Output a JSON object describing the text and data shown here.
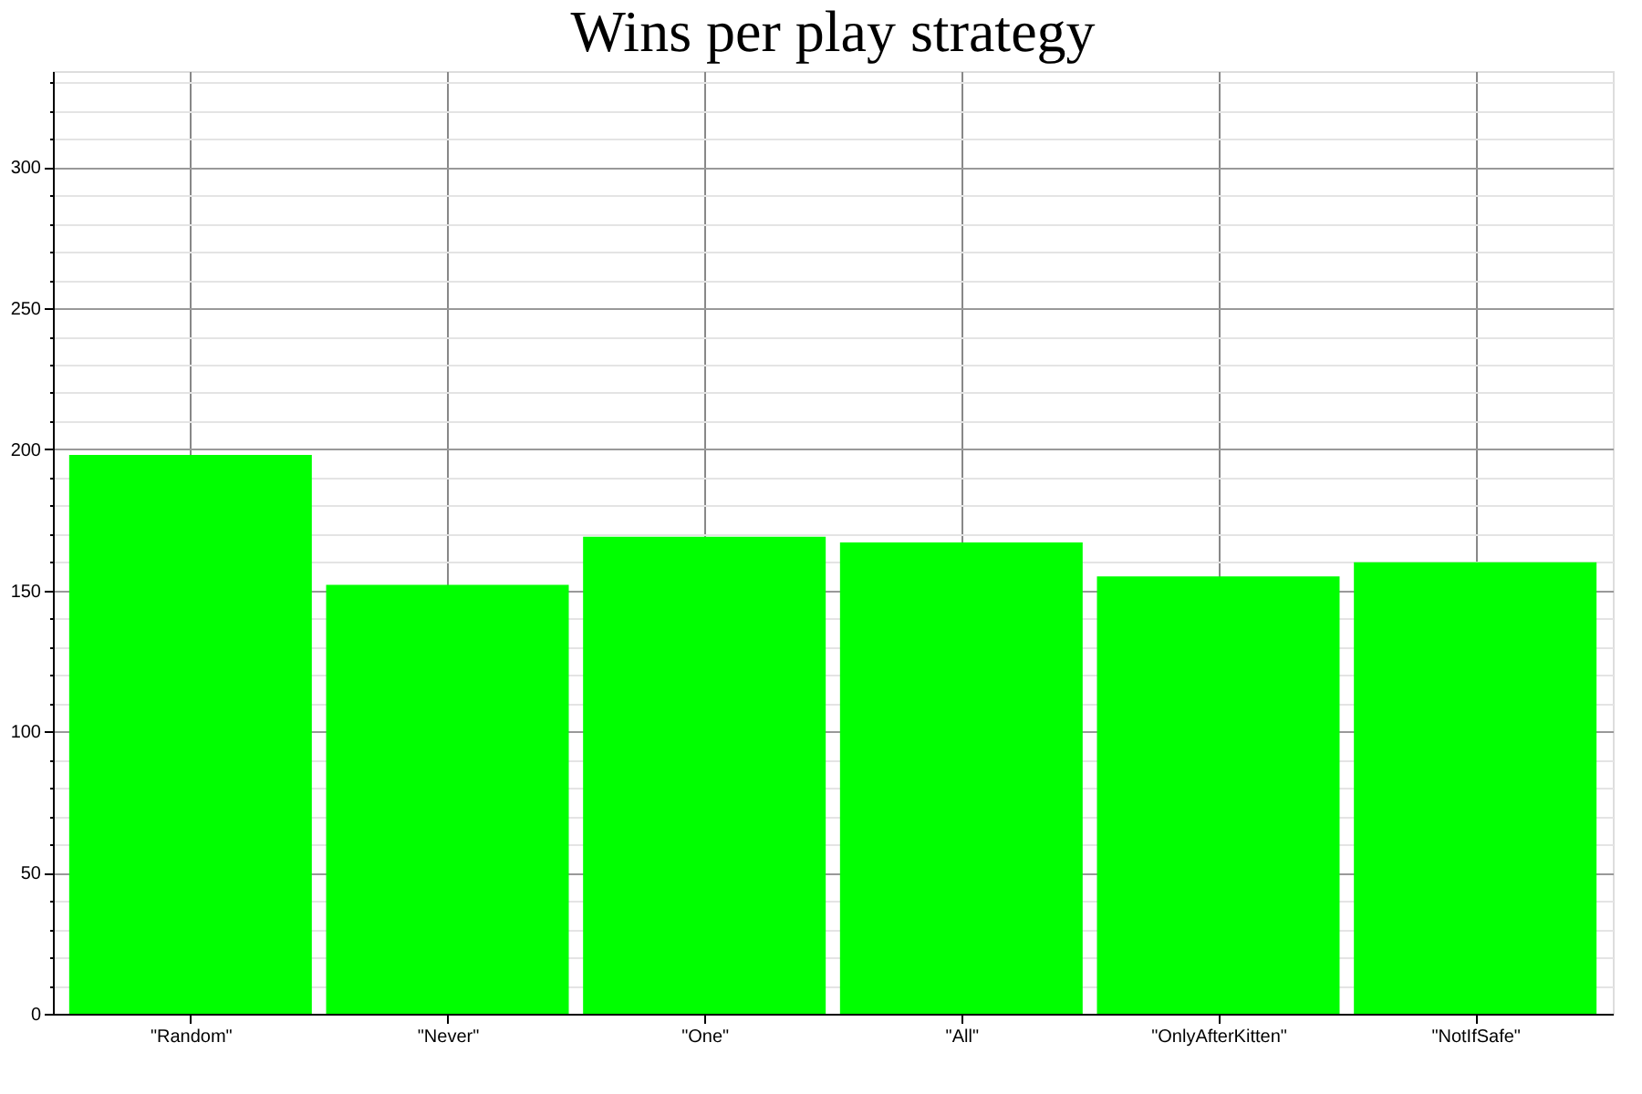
{
  "chart_data": {
    "type": "bar",
    "title": "Wins per play strategy",
    "categories": [
      "\"Random\"",
      "\"Never\"",
      "\"One\"",
      "\"All\"",
      "\"OnlyAfterKitten\"",
      "\"NotIfSafe\""
    ],
    "values": [
      198,
      152,
      169,
      167,
      155,
      160
    ],
    "color": "#00ff00",
    "ylim": [
      0,
      334
    ],
    "yticks": [
      0,
      {
        "value": 10,
        "label": null
      },
      {
        "value": 20,
        "label": null
      },
      {
        "value": 30,
        "label": null
      },
      {
        "value": 40,
        "label": null
      },
      50,
      {
        "value": 60,
        "label": null
      },
      {
        "value": 70,
        "label": null
      },
      {
        "value": 80,
        "label": null
      },
      {
        "value": 90,
        "label": null
      },
      100,
      {
        "value": 110,
        "label": null
      },
      {
        "value": 120,
        "label": null
      },
      {
        "value": 130,
        "label": null
      },
      {
        "value": 140,
        "label": null
      },
      150,
      {
        "value": 160,
        "label": null
      },
      {
        "value": 170,
        "label": null
      },
      {
        "value": 180,
        "label": null
      },
      {
        "value": 190,
        "label": null
      },
      200,
      {
        "value": 210,
        "label": null
      },
      {
        "value": 220,
        "label": null
      },
      {
        "value": 230,
        "label": null
      },
      {
        "value": 240,
        "label": null
      },
      250,
      {
        "value": 260,
        "label": null
      },
      {
        "value": 270,
        "label": null
      },
      {
        "value": 280,
        "label": null
      },
      {
        "value": 290,
        "label": null
      },
      300,
      {
        "value": 310,
        "label": null
      },
      {
        "value": 320,
        "label": null
      },
      {
        "value": 330,
        "label": null
      }
    ],
    "grid": true
  }
}
